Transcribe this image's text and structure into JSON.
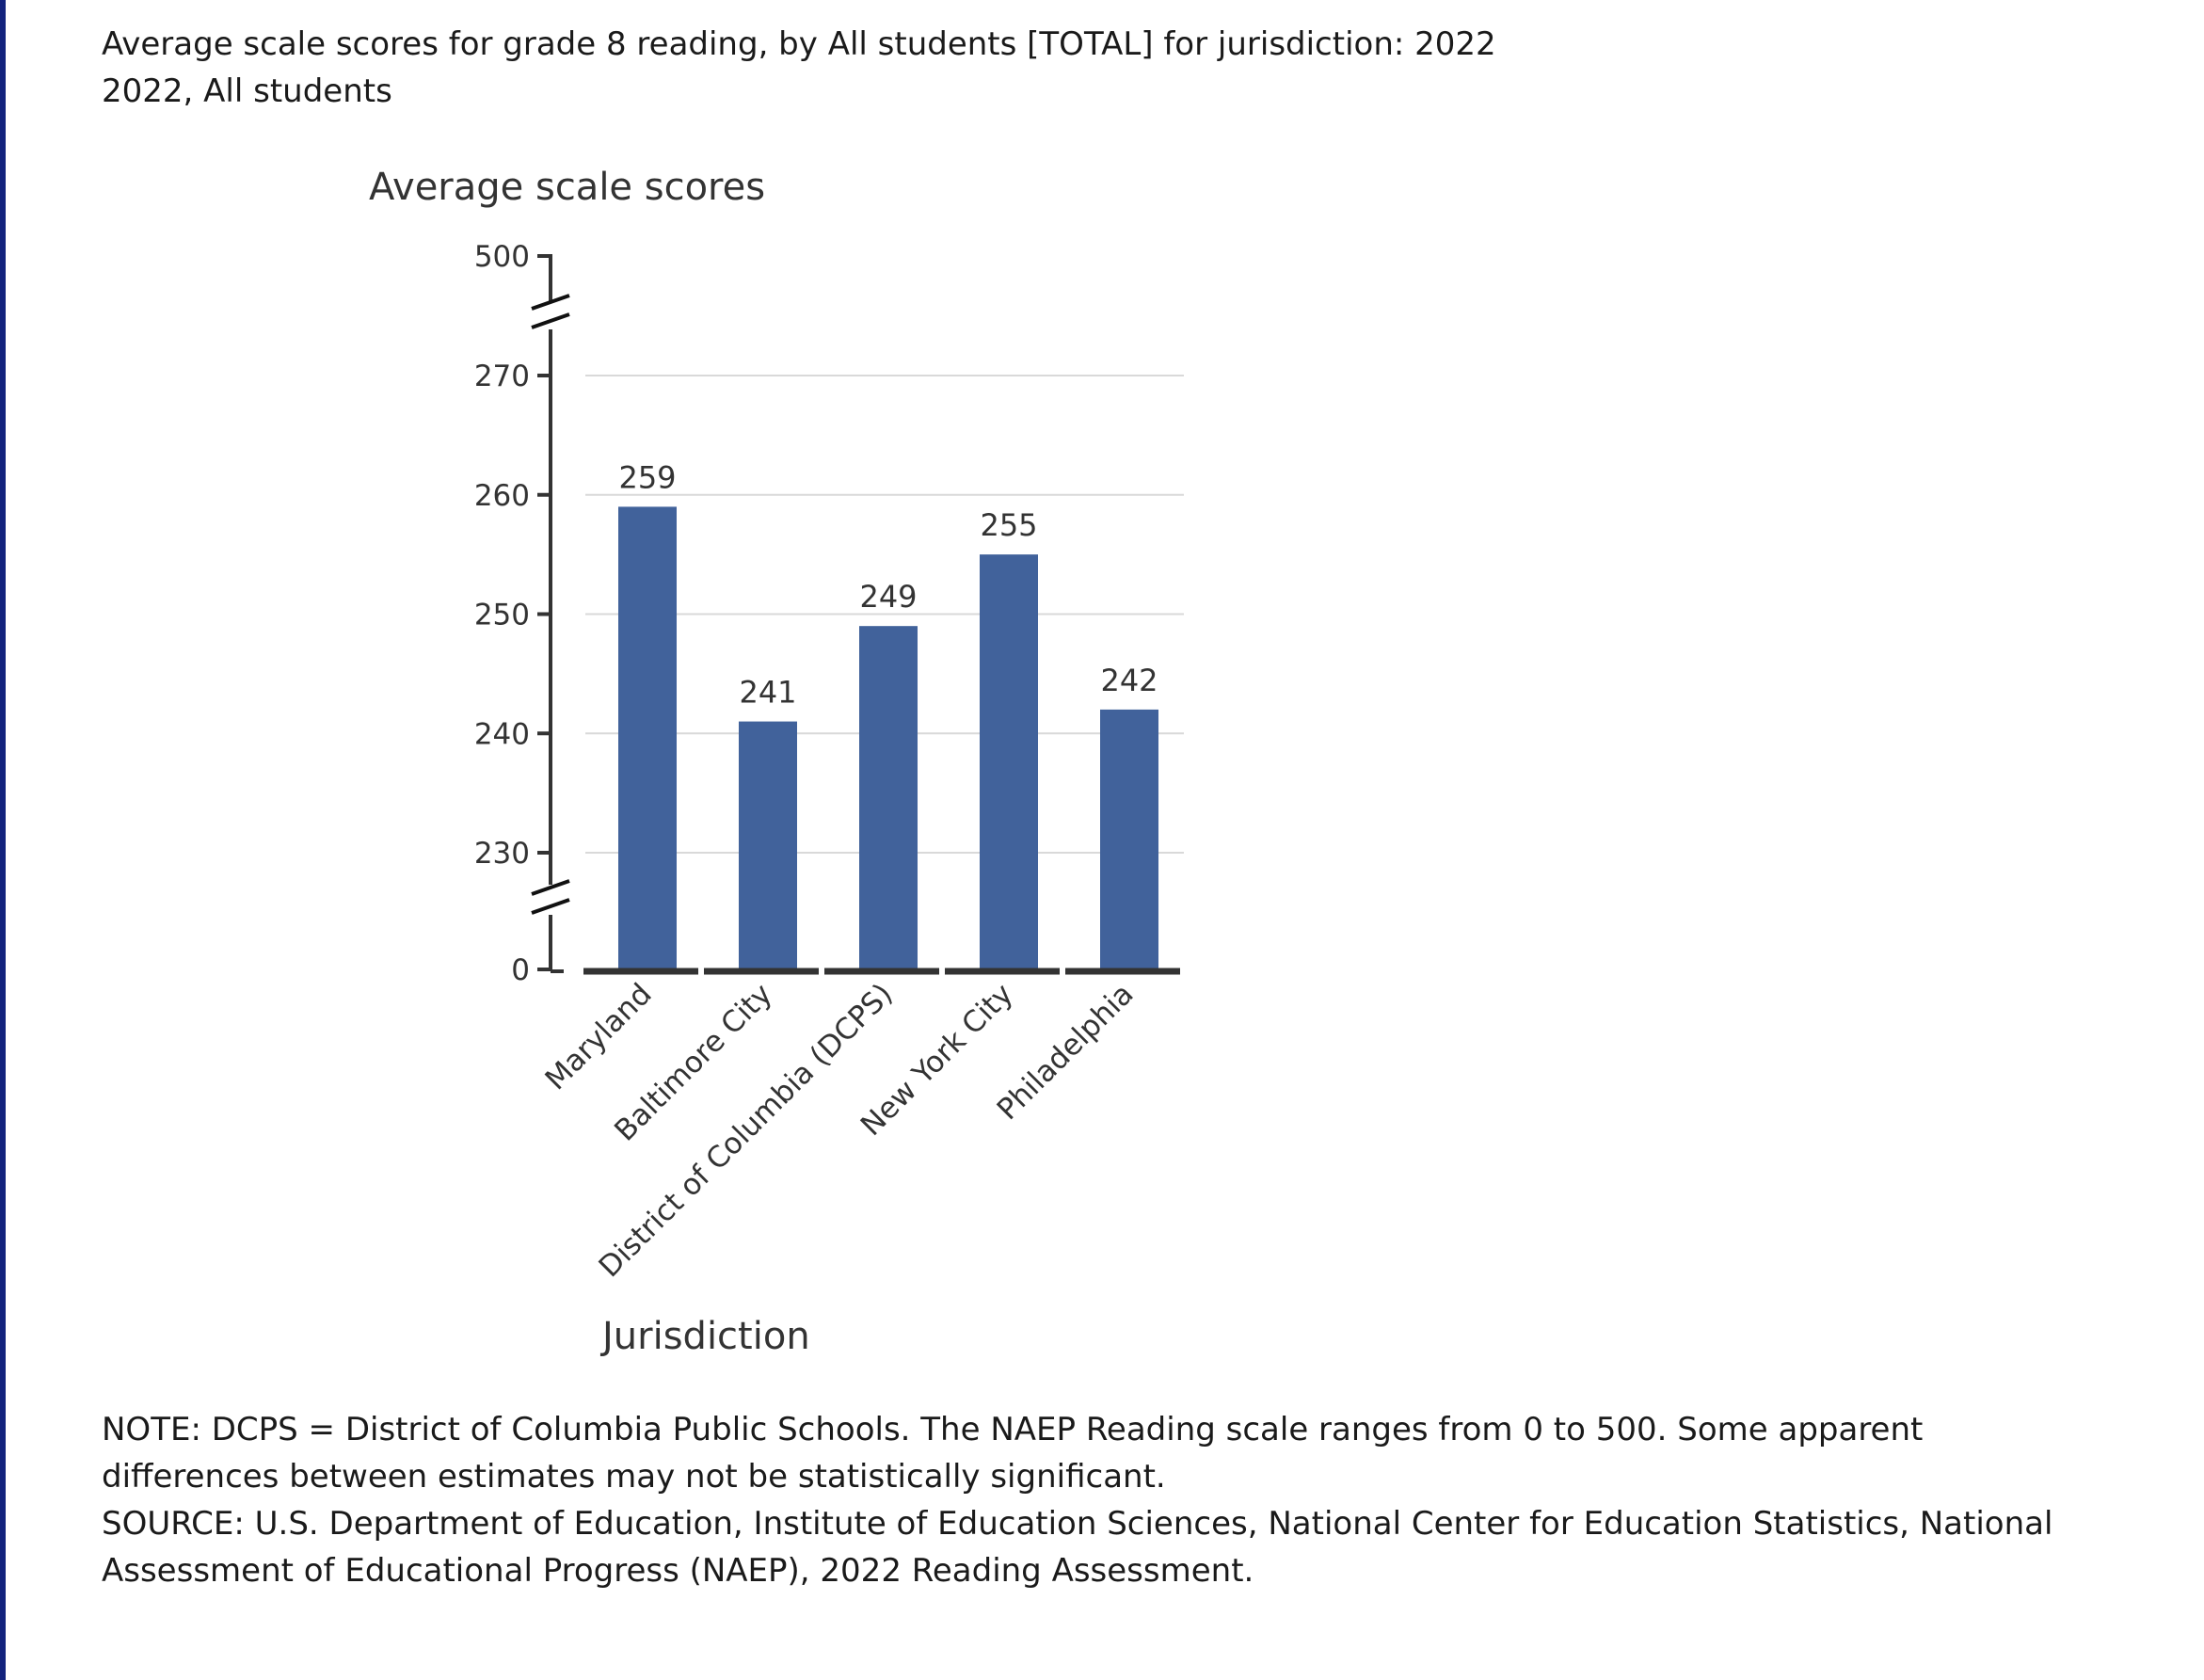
{
  "header": {
    "title": "Average scale scores for grade 8 reading, by All students [TOTAL] for jurisdiction: 2022",
    "subtitle": "2022, All students"
  },
  "footer": {
    "note": "NOTE: DCPS = District of Columbia Public Schools. The NAEP Reading scale ranges from 0 to 500. Some apparent differences between estimates may not be statistically significant.",
    "source": "SOURCE: U.S. Department of Education, Institute of Education Sciences, National Center for Education Statistics, National Assessment of Educational Progress (NAEP), 2022 Reading Assessment."
  },
  "colors": {
    "bar": "#41629b",
    "axis": "#333333",
    "grid": "#d9d9d9",
    "page_rule": "#13237d"
  },
  "chart_data": {
    "type": "bar",
    "ylabel": "Average scale scores",
    "xlabel": "Jurisdiction",
    "categories": [
      "Maryland",
      "Baltimore City",
      "District of Columbia (DCPS)",
      "New York City",
      "Philadelphia"
    ],
    "values": [
      259,
      241,
      249,
      255,
      242
    ],
    "data_labels": [
      "259",
      "241",
      "249",
      "255",
      "242"
    ],
    "ylim": [
      225,
      270
    ],
    "yticks": [
      230,
      240,
      250,
      260,
      270
    ],
    "ytick_labels": [
      "230",
      "240",
      "250",
      "260",
      "270"
    ],
    "axis_break_top_label": "500",
    "axis_break_bottom_label": "0",
    "grid": true,
    "axis_breaks": true
  }
}
